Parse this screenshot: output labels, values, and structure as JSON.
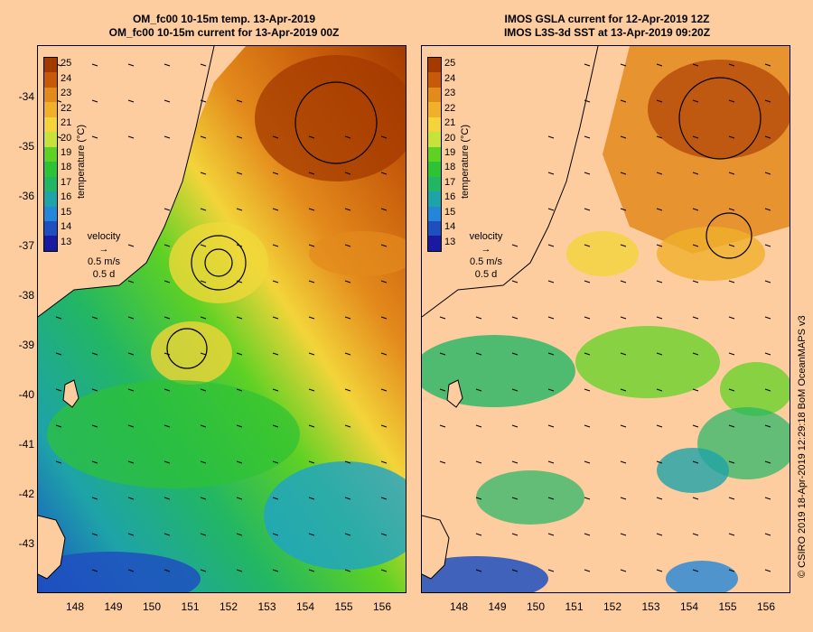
{
  "panels": [
    {
      "title_line1": "OM_fc00 10-15m temp. 13-Apr-2019",
      "title_line2": "OM_fc00 10-15m current for 13-Apr-2019 00Z"
    },
    {
      "title_line1": "IMOS GSLA current for 12-Apr-2019 12Z",
      "title_line2": "IMOS L3S-3d SST at 13-Apr-2019 09:20Z"
    }
  ],
  "colorbar": {
    "title": "temperature (°C)",
    "labels": [
      "25",
      "24",
      "23",
      "22",
      "21",
      "20",
      "19",
      "18",
      "17",
      "16",
      "15",
      "14",
      "13"
    ],
    "colors": [
      "#a33a00",
      "#c65a0a",
      "#e38a1c",
      "#f0b02a",
      "#f3d43a",
      "#c8e23c",
      "#5fd124",
      "#2ec235",
      "#22b664",
      "#1ea3a8",
      "#2386d8",
      "#1f4fbf",
      "#1a1aa0"
    ]
  },
  "velocity_key": {
    "label": "velocity",
    "speed": "0.5 m/s",
    "duration": "0.5 d"
  },
  "y_axis_labels": [
    "-34",
    "-35",
    "-36",
    "-37",
    "-38",
    "-39",
    "-40",
    "-41",
    "-42",
    "-43"
  ],
  "x_axis_labels": [
    "148",
    "149",
    "150",
    "151",
    "152",
    "153",
    "154",
    "155",
    "156"
  ],
  "credit": "© CSIRO 2019   18-Apr-2019 12:29:18 BoM OceanMAPS v3"
}
